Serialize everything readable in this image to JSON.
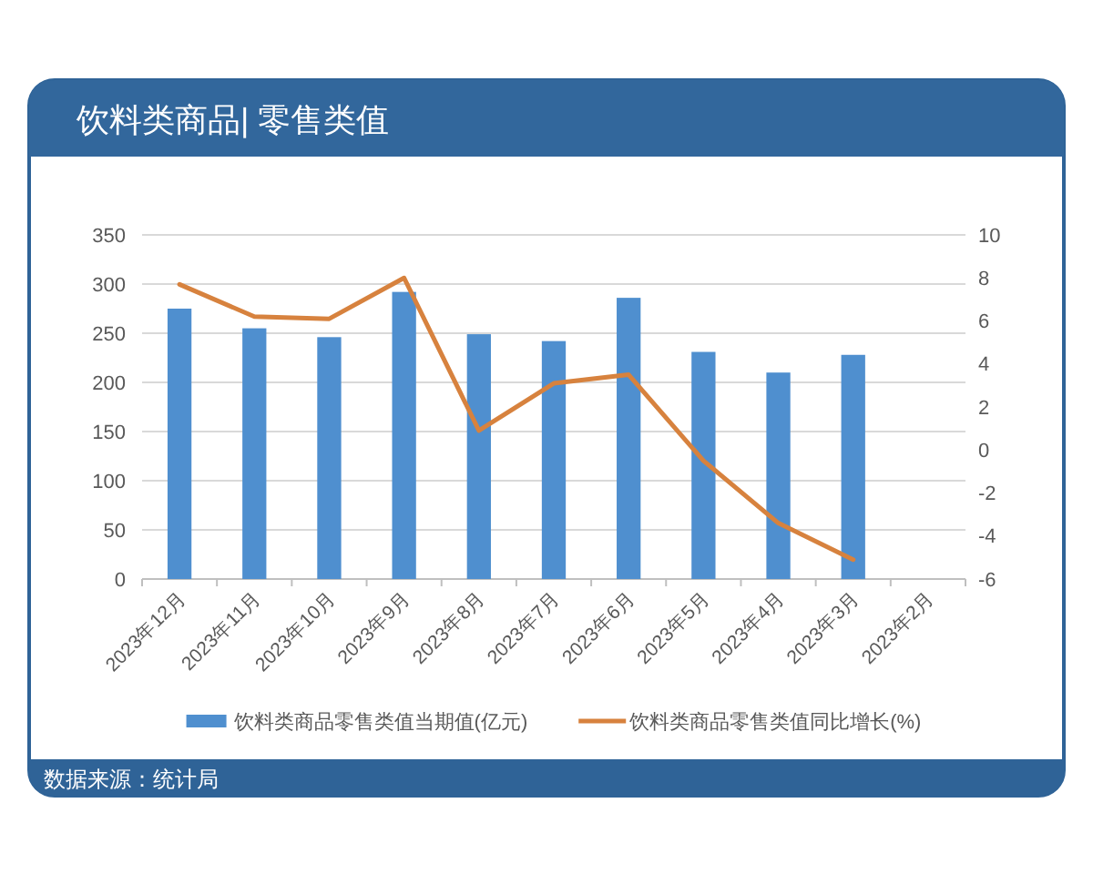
{
  "chart_data": {
    "type": "bar",
    "title": "饮料类商品| 零售类值",
    "categories": [
      "2023年12月",
      "2023年11月",
      "2023年10月",
      "2023年9月",
      "2023年8月",
      "2023年7月",
      "2023年6月",
      "2023年5月",
      "2023年4月",
      "2023年3月",
      "2023年2月"
    ],
    "series": [
      {
        "name": "饮料类商品零售类值当期值(亿元)",
        "color": "#4f8fcf",
        "values": [
          275,
          255,
          246,
          292,
          249,
          242,
          286,
          231,
          210,
          228,
          null
        ]
      },
      {
        "name": "饮料类商品零售类值同比增长(%)",
        "type": "line",
        "axis": "y2",
        "color": "#d7823e",
        "values": [
          7.7,
          6.2,
          6.1,
          8.0,
          0.9,
          3.1,
          3.5,
          -0.5,
          -3.4,
          -5.1,
          null
        ]
      }
    ],
    "ylim": [
      0,
      350
    ],
    "yticks": [
      0,
      50,
      100,
      150,
      200,
      250,
      300,
      350
    ],
    "y2lim": [
      -6,
      10
    ],
    "y2ticks": [
      -6,
      -4,
      -2,
      0,
      2,
      4,
      6,
      8,
      10
    ],
    "grid": "y",
    "legend": "bottom",
    "annotations": [
      "数据来源：统计局"
    ]
  }
}
